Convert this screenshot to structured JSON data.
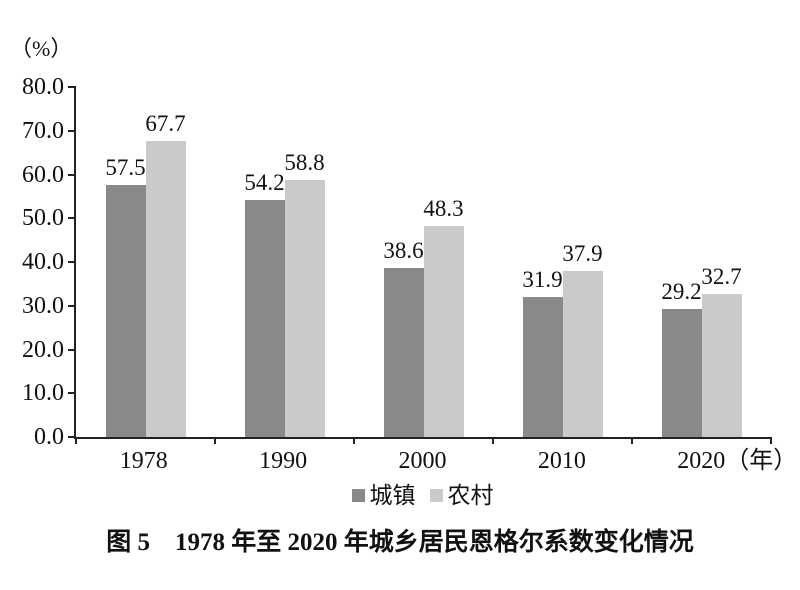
{
  "figure": {
    "unit_label": "（%）",
    "caption": "图 5　1978 年至 2020 年城乡居民恩格尔系数变化情况"
  },
  "chart_data": {
    "type": "bar",
    "title": "图 5　1978 年至 2020 年城乡居民恩格尔系数变化情况",
    "categories": [
      "1978",
      "1990",
      "2000",
      "2010",
      "2020"
    ],
    "series": [
      {
        "key": "urban",
        "name": "城镇",
        "color": "#898989",
        "values": [
          57.5,
          54.2,
          38.6,
          31.9,
          29.2
        ]
      },
      {
        "key": "rural",
        "name": "农村",
        "color": "#cacaca",
        "values": [
          67.7,
          58.8,
          48.3,
          37.9,
          32.7
        ]
      }
    ],
    "xlabel": "",
    "ylabel": "（%）",
    "x_axis_suffix": "（年）",
    "ylim": [
      0,
      80
    ],
    "ytick_step": 10,
    "ytick_labels": [
      "0.0",
      "10.0",
      "20.0",
      "30.0",
      "40.0",
      "50.0",
      "60.0",
      "70.0",
      "80.0"
    ],
    "grid": false,
    "legend_position": "bottom",
    "value_labels_shown": true,
    "axis_color": "#222222",
    "text_color": "#111111"
  }
}
